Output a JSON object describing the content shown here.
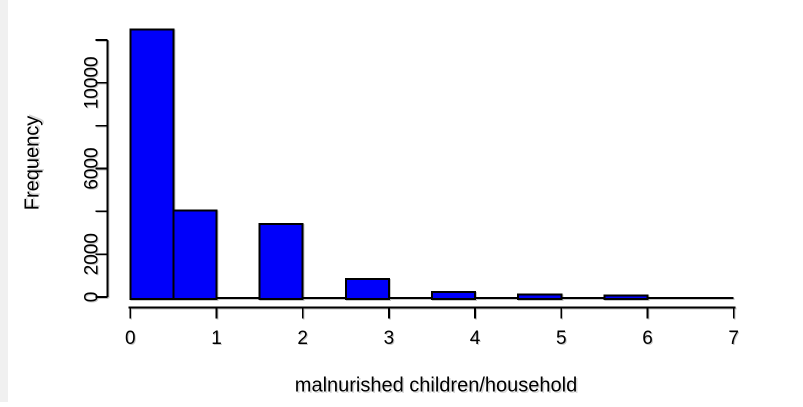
{
  "page": {
    "background": "#ffffff",
    "left_strip_color": "#f0f0f0"
  },
  "chart_data": {
    "type": "bar",
    "subtype": "histogram",
    "title": "",
    "xlabel": "malnurished children/household",
    "ylabel": "Frequency",
    "xlim": [
      0,
      7
    ],
    "ylim": [
      0,
      12000
    ],
    "grid": false,
    "legend": false,
    "x_ticks": [
      0,
      1,
      2,
      3,
      4,
      5,
      6,
      7
    ],
    "y_ticks": [
      {
        "value": 0,
        "label": "0"
      },
      {
        "value": 2000,
        "label": "2000"
      },
      {
        "value": 4000,
        "label": ""
      },
      {
        "value": 6000,
        "label": "6000"
      },
      {
        "value": 8000,
        "label": ""
      },
      {
        "value": 10000,
        "label": "10000"
      },
      {
        "value": 12000,
        "label": ""
      }
    ],
    "bins": [
      {
        "from": 0.0,
        "to": 0.5,
        "count": 12500
      },
      {
        "from": 0.5,
        "to": 1.0,
        "count": 4050
      },
      {
        "from": 1.0,
        "to": 1.5,
        "count": 0
      },
      {
        "from": 1.5,
        "to": 2.0,
        "count": 3400
      },
      {
        "from": 2.0,
        "to": 2.5,
        "count": 0
      },
      {
        "from": 2.5,
        "to": 3.0,
        "count": 840
      },
      {
        "from": 3.0,
        "to": 3.5,
        "count": 0
      },
      {
        "from": 3.5,
        "to": 4.0,
        "count": 240
      },
      {
        "from": 4.0,
        "to": 4.5,
        "count": 0
      },
      {
        "from": 4.5,
        "to": 5.0,
        "count": 120
      },
      {
        "from": 5.0,
        "to": 5.5,
        "count": 0
      },
      {
        "from": 5.5,
        "to": 6.0,
        "count": 60
      },
      {
        "from": 6.0,
        "to": 6.5,
        "count": 0
      },
      {
        "from": 6.5,
        "to": 7.0,
        "count": 0
      }
    ],
    "bar_fill": "#0000fa",
    "bar_border": "#000000",
    "axis_color": "#000000"
  }
}
